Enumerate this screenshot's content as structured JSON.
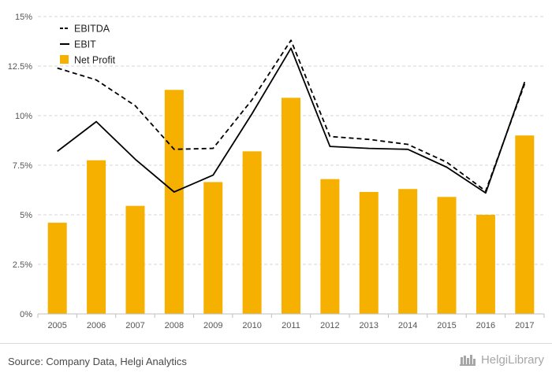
{
  "chart_data": {
    "type": "bar",
    "categories": [
      "2005",
      "2006",
      "2007",
      "2008",
      "2009",
      "2010",
      "2011",
      "2012",
      "2013",
      "2014",
      "2015",
      "2016",
      "2017"
    ],
    "series": [
      {
        "name": "EBITDA",
        "type": "line",
        "style": "dashed",
        "color": "#000000",
        "values": [
          12.4,
          11.8,
          10.5,
          8.3,
          8.35,
          10.8,
          13.8,
          8.95,
          8.8,
          8.55,
          7.65,
          6.2,
          11.6
        ]
      },
      {
        "name": "EBIT",
        "type": "line",
        "style": "solid",
        "color": "#000000",
        "values": [
          8.2,
          9.7,
          7.8,
          6.15,
          7.0,
          10.1,
          13.4,
          8.45,
          8.35,
          8.3,
          7.4,
          6.1,
          11.7
        ]
      },
      {
        "name": "Net Profit",
        "type": "bar",
        "color": "#f5b000",
        "values": [
          4.6,
          7.75,
          5.45,
          11.3,
          6.65,
          8.2,
          10.9,
          6.8,
          6.15,
          6.3,
          5.9,
          5.0,
          9.0
        ]
      }
    ],
    "title": "",
    "xlabel": "",
    "ylabel": "",
    "ylim": [
      0,
      15
    ],
    "y_ticks": [
      {
        "value": 0,
        "label": "0%"
      },
      {
        "value": 2.5,
        "label": "2.5%"
      },
      {
        "value": 5,
        "label": "5%"
      },
      {
        "value": 7.5,
        "label": "7.5%"
      },
      {
        "value": 10,
        "label": "10%"
      },
      {
        "value": 12.5,
        "label": "12.5%"
      },
      {
        "value": 15,
        "label": "15%"
      }
    ],
    "grid": "horizontal-dashed",
    "legend_position": "top-left"
  },
  "footer": {
    "source": "Source: Company Data, Helgi Analytics",
    "brand": "HelgiLibrary"
  },
  "colors": {
    "bar": "#f5b000",
    "grid": "#d4d4d4",
    "line": "#000000"
  }
}
